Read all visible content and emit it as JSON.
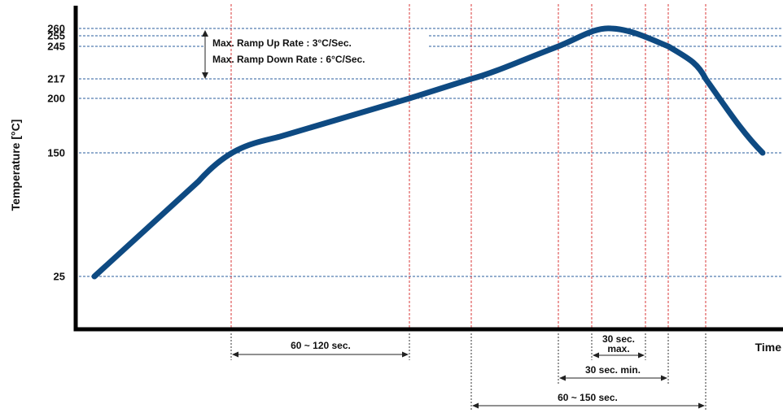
{
  "chart_data": {
    "type": "line",
    "title": "",
    "xlabel": "Time",
    "ylabel": "Temperature [°C]",
    "y_ticks": [
      {
        "value": 260,
        "label": "260"
      },
      {
        "value": 255,
        "label": "255"
      },
      {
        "value": 245,
        "label": "245"
      },
      {
        "value": 217,
        "label": "217"
      },
      {
        "value": 200,
        "label": "200"
      },
      {
        "value": 150,
        "label": "150"
      },
      {
        "value": 25,
        "label": "25"
      }
    ],
    "grid": true,
    "series": [
      {
        "color": "#0e4a82",
        "points": [
          [
            0,
            25
          ],
          [
            1,
            150
          ],
          [
            2,
            200
          ],
          [
            3,
            217
          ],
          [
            4,
            245
          ],
          [
            5,
            260
          ],
          [
            6,
            245
          ],
          [
            7,
            217
          ],
          [
            8,
            150
          ]
        ]
      }
    ],
    "ramp_labels": {
      "up": "Max. Ramp Up Rate : 3°C/Sec.",
      "down": "Max. Ramp Down Rate : 6°C/Sec."
    },
    "interval_labels": {
      "preheat": "60 ~ 120 sec.",
      "peak_line1": "30 sec.",
      "peak_line2": "max.",
      "above_245": "30 sec. min.",
      "above_217": "60 ~ 150 sec."
    }
  }
}
